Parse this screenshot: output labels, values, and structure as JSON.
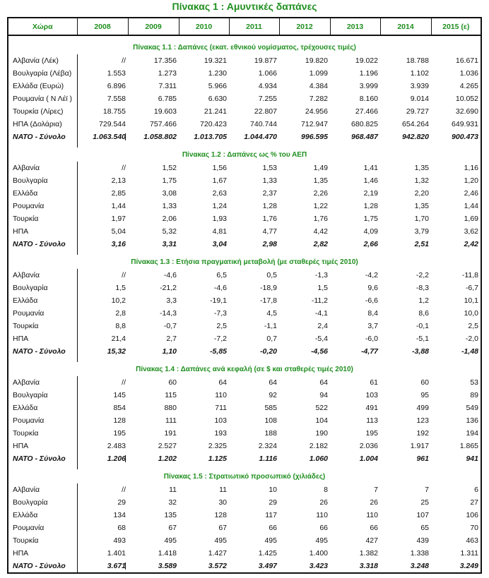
{
  "title": "Πίνακας 1 : Αμυντικές δαπάνες",
  "header": [
    "Χώρα",
    "2008",
    "2009",
    "2010",
    "2011",
    "2012",
    "2013",
    "2014",
    "2015 (ε)"
  ],
  "sections": [
    {
      "title": "Πίνακας 1.1 : Δαπάνες (εκατ. εθνικού νομίσματος, τρέχουσες τιμές)",
      "mark": true,
      "rows": [
        {
          "label": "Αλβανία (Λέκ)",
          "values": [
            "//",
            "17.356",
            "19.321",
            "19.877",
            "19.820",
            "19.022",
            "18.788",
            "16.671"
          ]
        },
        {
          "label": "Βουλγαρία (Λέβα)",
          "values": [
            "1.553",
            "1.273",
            "1.230",
            "1.066",
            "1.099",
            "1.196",
            "1.102",
            "1.036"
          ]
        },
        {
          "label": "Ελλάδα (Ευρώ)",
          "values": [
            "6.896",
            "7.311",
            "5.966",
            "4.934",
            "4.384",
            "3.999",
            "3.939",
            "4.265"
          ]
        },
        {
          "label": "Ρουμανία ( Ν Λέϊ )",
          "values": [
            "7.558",
            "6.785",
            "6.630",
            "7.255",
            "7.282",
            "8.160",
            "9.014",
            "10.052"
          ]
        },
        {
          "label": "Τουρκία (Λίρες)",
          "values": [
            "18.755",
            "19.603",
            "21.241",
            "22.807",
            "24.956",
            "27.466",
            "29.727",
            "32.690"
          ]
        },
        {
          "label": "ΗΠΑ (Δολάρια)",
          "values": [
            "729.544",
            "757.466",
            "720.423",
            "740.744",
            "712.947",
            "680.825",
            "654.264",
            "649.931"
          ]
        },
        {
          "label": "ΝΑΤΟ - Σύνολο",
          "total": true,
          "values": [
            "1.063.540",
            "1.058.802",
            "1.013.705",
            "1.044.470",
            "996.595",
            "968.487",
            "942.820",
            "900.473"
          ]
        }
      ]
    },
    {
      "title": "Πίνακας 1.2 : Δαπάνες ως % του ΑΕΠ",
      "rows": [
        {
          "label": "Αλβανία",
          "values": [
            "//",
            "1,52",
            "1,56",
            "1,53",
            "1,49",
            "1,41",
            "1,35",
            "1,16"
          ]
        },
        {
          "label": "Βουλγαρία",
          "values": [
            "2,13",
            "1,75",
            "1,67",
            "1,33",
            "1,35",
            "1,46",
            "1,32",
            "1,20"
          ]
        },
        {
          "label": "Ελλάδα",
          "values": [
            "2,85",
            "3,08",
            "2,63",
            "2,37",
            "2,26",
            "2,19",
            "2,20",
            "2,46"
          ]
        },
        {
          "label": "Ρουμανία",
          "values": [
            "1,44",
            "1,33",
            "1,24",
            "1,28",
            "1,22",
            "1,28",
            "1,35",
            "1,44"
          ]
        },
        {
          "label": "Τουρκία",
          "values": [
            "1,97",
            "2,06",
            "1,93",
            "1,76",
            "1,76",
            "1,75",
            "1,70",
            "1,69"
          ]
        },
        {
          "label": "ΗΠΑ",
          "values": [
            "5,04",
            "5,32",
            "4,81",
            "4,77",
            "4,42",
            "4,09",
            "3,79",
            "3,62"
          ]
        },
        {
          "label": "ΝΑΤΟ - Σύνολο",
          "total": true,
          "values": [
            "3,16",
            "3,31",
            "3,04",
            "2,98",
            "2,82",
            "2,66",
            "2,51",
            "2,42"
          ]
        }
      ]
    },
    {
      "title": "Πίνακας 1.3 : Ετήσια πραγματική μεταβολή (με σταθερές τιμές 2010)",
      "rows": [
        {
          "label": "Αλβανία",
          "values": [
            "//",
            "-4,6",
            "6,5",
            "0,5",
            "-1,3",
            "-4,2",
            "-2,2",
            "-11,8"
          ]
        },
        {
          "label": "Βουλγαρία",
          "values": [
            "1,5",
            "-21,2",
            "-4,6",
            "-18,9",
            "1,5",
            "9,6",
            "-8,3",
            "-6,7"
          ]
        },
        {
          "label": "Ελλάδα",
          "values": [
            "10,2",
            "3,3",
            "-19,1",
            "-17,8",
            "-11,2",
            "-6,6",
            "1,2",
            "10,1"
          ]
        },
        {
          "label": "Ρουμανία",
          "values": [
            "2,8",
            "-14,3",
            "-7,3",
            "4,5",
            "-4,1",
            "8,4",
            "8,6",
            "10,0"
          ]
        },
        {
          "label": "Τουρκία",
          "values": [
            "8,8",
            "-0,7",
            "2,5",
            "-1,1",
            "2,4",
            "3,7",
            "-0,1",
            "2,5"
          ]
        },
        {
          "label": "ΗΠΑ",
          "values": [
            "21,4",
            "2,7",
            "-7,2",
            "0,7",
            "-5,4",
            "-6,0",
            "-5,1",
            "-2,0"
          ]
        },
        {
          "label": "ΝΑΤΟ - Σύνολο",
          "total": true,
          "values": [
            "15,32",
            "1,10",
            "-5,85",
            "-0,20",
            "-4,56",
            "-4,77",
            "-3,88",
            "-1,48"
          ]
        }
      ]
    },
    {
      "title": "Πίνακας 1.4 : Δαπάνες ανά κεφαλή (σε $ και σταθερές τιμές 2010)",
      "mark": true,
      "rows": [
        {
          "label": "Αλβανία",
          "values": [
            "//",
            "60",
            "64",
            "64",
            "64",
            "61",
            "60",
            "53"
          ]
        },
        {
          "label": "Βουλγαρία",
          "values": [
            "145",
            "115",
            "110",
            "92",
            "94",
            "103",
            "95",
            "89"
          ]
        },
        {
          "label": "Ελλάδα",
          "values": [
            "854",
            "880",
            "711",
            "585",
            "522",
            "491",
            "499",
            "549"
          ]
        },
        {
          "label": "Ρουμανία",
          "values": [
            "128",
            "111",
            "103",
            "108",
            "104",
            "113",
            "123",
            "136"
          ]
        },
        {
          "label": "Τουρκία",
          "values": [
            "195",
            "191",
            "193",
            "188",
            "190",
            "195",
            "192",
            "194"
          ]
        },
        {
          "label": "ΗΠΑ",
          "values": [
            "2.483",
            "2.527",
            "2.325",
            "2.324",
            "2.182",
            "2.036",
            "1.917",
            "1.865"
          ]
        },
        {
          "label": "ΝΑΤΟ - Σύνολο",
          "total": true,
          "values": [
            "1.206",
            "1.202",
            "1.125",
            "1.116",
            "1.060",
            "1.004",
            "961",
            "941"
          ]
        }
      ]
    },
    {
      "title": "Πίνακας 1.5 : Στρατιωτικό προσωπικό (χιλιάδες)",
      "mark": true,
      "rows": [
        {
          "label": "Αλβανία",
          "values": [
            "//",
            "11",
            "11",
            "10",
            "8",
            "7",
            "7",
            "6"
          ]
        },
        {
          "label": "Βουλγαρία",
          "values": [
            "29",
            "32",
            "30",
            "29",
            "26",
            "26",
            "25",
            "27"
          ]
        },
        {
          "label": "Ελλάδα",
          "values": [
            "134",
            "135",
            "128",
            "117",
            "110",
            "110",
            "107",
            "106"
          ]
        },
        {
          "label": "Ρουμανία",
          "values": [
            "68",
            "67",
            "67",
            "66",
            "66",
            "66",
            "65",
            "70"
          ]
        },
        {
          "label": "Τουρκία",
          "values": [
            "493",
            "495",
            "495",
            "495",
            "495",
            "427",
            "439",
            "463"
          ]
        },
        {
          "label": "ΗΠΑ",
          "values": [
            "1.401",
            "1.418",
            "1.427",
            "1.425",
            "1.400",
            "1.382",
            "1.338",
            "1.311"
          ]
        },
        {
          "label": "ΝΑΤΟ - Σύνολο",
          "total": true,
          "values": [
            "3.671",
            "3.589",
            "3.572",
            "3.497",
            "3.423",
            "3.318",
            "3.248",
            "3.249"
          ]
        }
      ]
    }
  ]
}
